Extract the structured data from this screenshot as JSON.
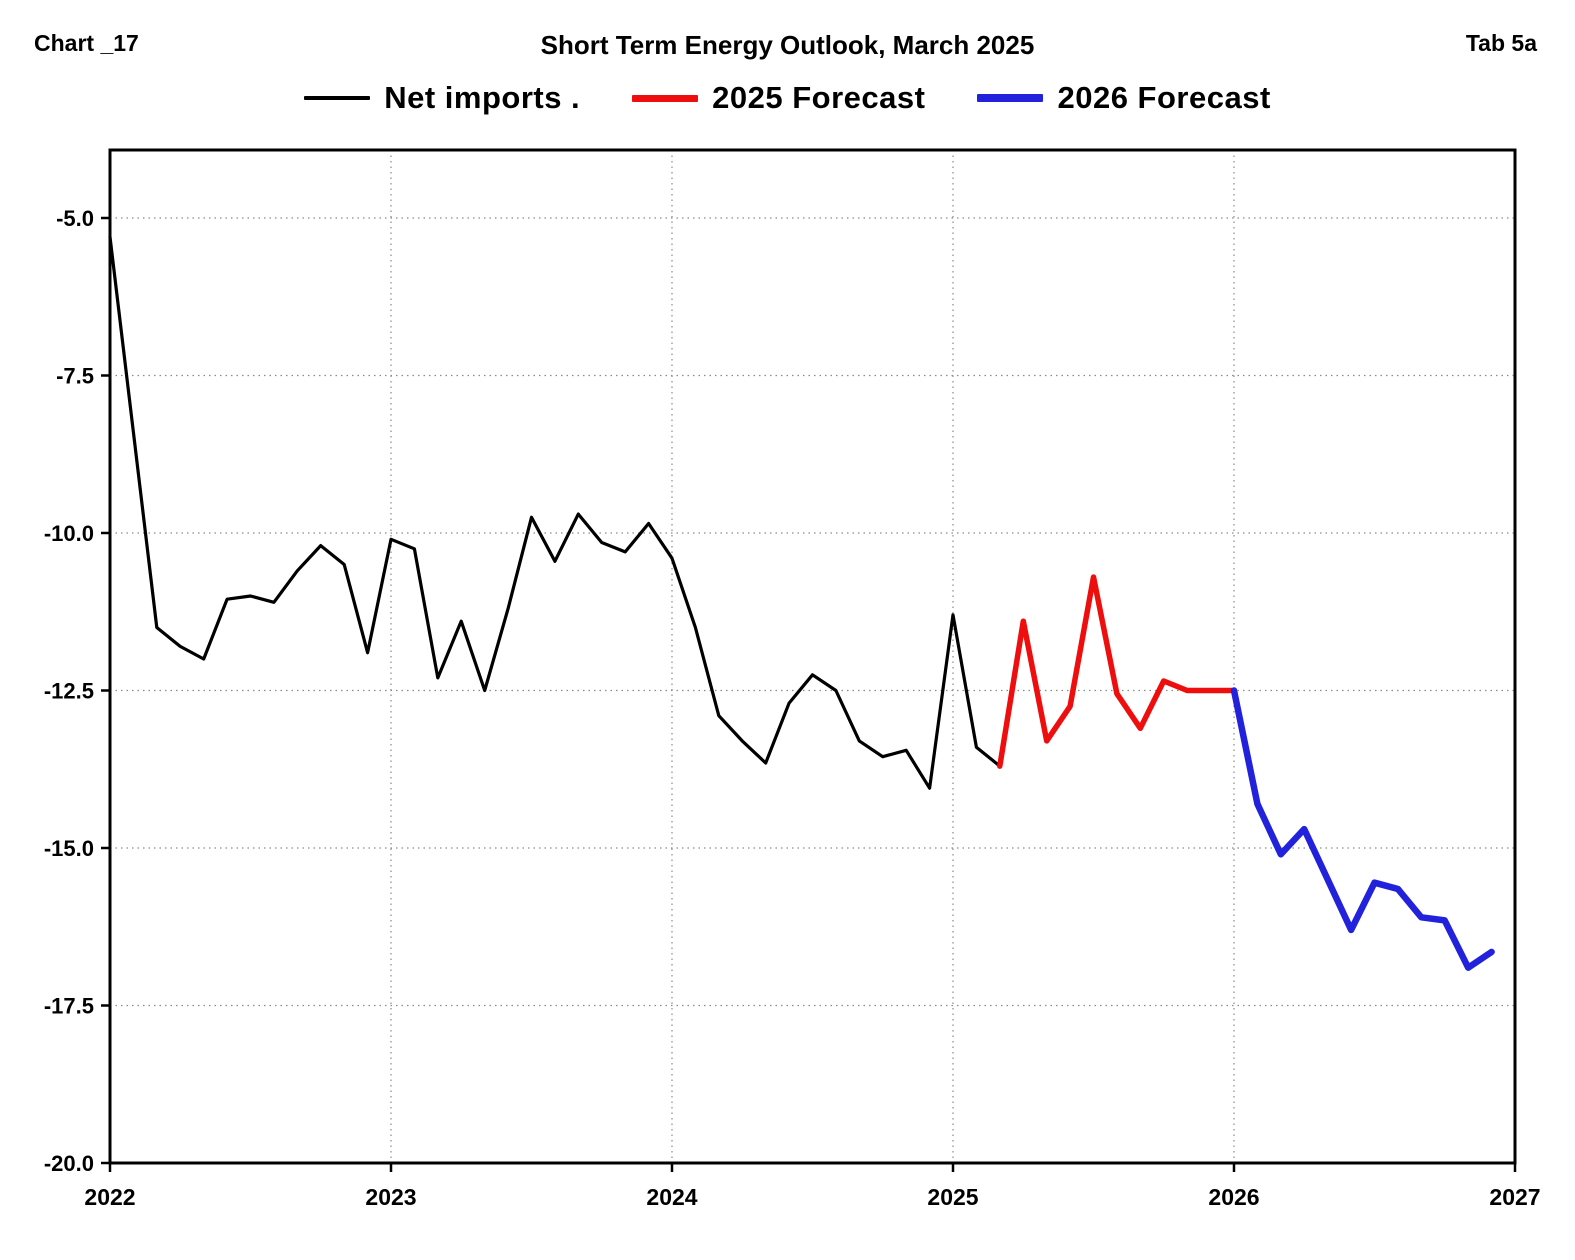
{
  "header": {
    "chart_label": "Chart _17",
    "title": "Short Term Energy Outlook, March 2025",
    "tab_label": "Tab 5a"
  },
  "legend": [
    {
      "label": "Net imports .",
      "color": "#000000",
      "thickness": 4
    },
    {
      "label": "2025 Forecast",
      "color": "#ee0e0e",
      "thickness": 7
    },
    {
      "label": "2026 Forecast",
      "color": "#2222dd",
      "thickness": 8
    }
  ],
  "chart_data": {
    "type": "line",
    "title": "Short Term Energy Outlook, March 2025",
    "xlabel": "",
    "ylabel": "",
    "grid": true,
    "legend_position": "top",
    "x_axis": {
      "range": [
        2022,
        2027
      ],
      "tick_labels": [
        "2022",
        "2023",
        "2024",
        "2025",
        "2026",
        "2027"
      ],
      "tick_values": [
        2022,
        2023,
        2024,
        2025,
        2026,
        2027
      ]
    },
    "y_axis": {
      "range": [
        -20.0,
        -3.92
      ],
      "tick_labels": [
        "-5.0",
        "-7.5",
        "-10.0",
        "-12.5",
        "-15.0",
        "-17.5",
        "-20.0"
      ],
      "tick_values": [
        -5.0,
        -7.5,
        -10.0,
        -12.5,
        -15.0,
        -17.5,
        -20.0
      ]
    },
    "series": [
      {
        "name": "Net imports",
        "color": "#000000",
        "width": 3.2,
        "x_start": 2022.0,
        "x_step": 0.0833333,
        "values": [
          -5.3,
          -8.4,
          -11.5,
          -11.8,
          -12.0,
          -11.05,
          -11.0,
          -11.1,
          -10.6,
          -10.2,
          -10.5,
          -11.9,
          -10.1,
          -10.25,
          -12.3,
          -11.4,
          -12.5,
          -11.2,
          -9.75,
          -10.45,
          -9.7,
          -10.15,
          -10.3,
          -9.85,
          -10.4,
          -11.5,
          -12.9,
          -13.3,
          -13.65,
          -12.7,
          -12.25,
          -12.5,
          -13.3,
          -13.55,
          -13.45,
          -14.05,
          -11.3,
          -13.4,
          -13.7
        ]
      },
      {
        "name": "2025 Forecast",
        "color": "#ee0e0e",
        "width": 5.5,
        "x_start": 2025.1666667,
        "x_step": 0.0833333,
        "values": [
          -13.7,
          -11.4,
          -13.3,
          -12.75,
          -10.7,
          -12.55,
          -13.1,
          -12.35,
          -12.5,
          -12.5,
          -12.5
        ]
      },
      {
        "name": "2026 Forecast",
        "color": "#2222dd",
        "width": 6.5,
        "x_start": 2026.0,
        "x_step": 0.0833333,
        "values": [
          -12.5,
          -14.3,
          -15.1,
          -14.7,
          -15.5,
          -16.3,
          -15.55,
          -15.65,
          -16.1,
          -16.15,
          -16.9,
          -16.65
        ]
      }
    ]
  }
}
